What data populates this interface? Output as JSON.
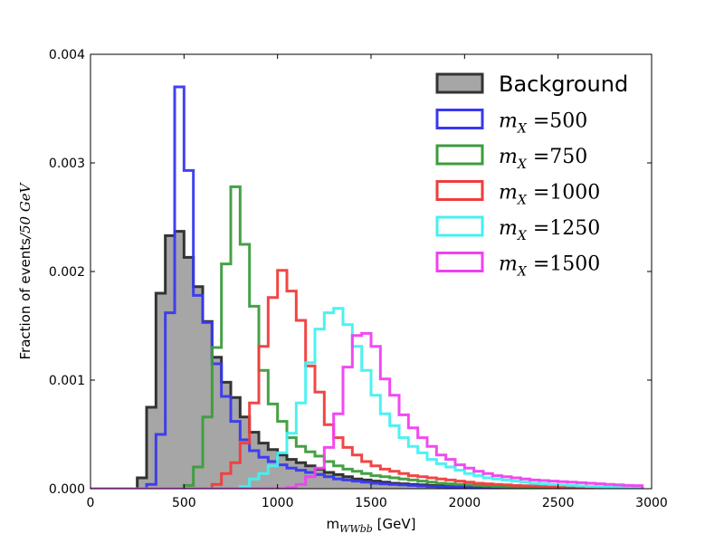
{
  "chart_data": {
    "type": "step-histogram",
    "title": "",
    "xlabel": {
      "main": "m",
      "sub": "WWbb",
      "unit": " [GeV]"
    },
    "ylabel": {
      "main": "Fraction of events",
      "suffix": "/50 GeV"
    },
    "xlim": [
      0,
      3000
    ],
    "ylim": [
      0,
      0.004
    ],
    "bin_width": 50,
    "bin_start": 0,
    "x_ticks": [
      0,
      500,
      1000,
      1500,
      2000,
      2500,
      3000
    ],
    "x_tick_labels": [
      "0",
      "500",
      "1000",
      "1500",
      "2000",
      "2500",
      "3000"
    ],
    "y_ticks": [
      0,
      0.001,
      0.002,
      0.003,
      0.004
    ],
    "y_tick_labels": [
      "0.000",
      "0.001",
      "0.002",
      "0.003",
      "0.004"
    ],
    "legend_position": "top-right",
    "series": [
      {
        "name": "Background",
        "label_kind": "text",
        "style": "filled",
        "color": "#333333",
        "fill": "#a6a6a6",
        "values": [
          0,
          0,
          0,
          0,
          0,
          0.0001,
          0.00075,
          0.0018,
          0.00233,
          0.00237,
          0.00213,
          0.00186,
          0.00154,
          0.00121,
          0.00098,
          0.00084,
          0.00066,
          0.00052,
          0.00042,
          0.00036,
          0.00031,
          0.00027,
          0.00024,
          0.00021,
          0.00018,
          0.00015,
          0.00013,
          0.00011,
          9e-05,
          8e-05,
          7e-05,
          6e-05,
          5e-05,
          4.5e-05,
          4e-05,
          3.5e-05,
          3e-05,
          2.5e-05,
          2e-05,
          1.8e-05,
          1.5e-05,
          1.3e-05,
          1.1e-05,
          1e-05,
          9e-06,
          8e-06,
          7e-06,
          6e-06,
          5e-06,
          5e-06,
          4e-06,
          4e-06,
          3e-06,
          3e-06,
          3e-06,
          2e-06,
          2e-06,
          2e-06,
          2e-06
        ]
      },
      {
        "name": "500",
        "label_kind": "math",
        "style": "step",
        "color": "#3838f0",
        "values": [
          0,
          0,
          0,
          0,
          0,
          0,
          4e-05,
          0.0005,
          0.00162,
          0.0037,
          0.00293,
          0.00178,
          0.00153,
          0.00115,
          0.00085,
          0.00062,
          0.00045,
          0.00035,
          0.00029,
          0.00025,
          0.00022,
          0.00019,
          0.00017,
          0.00015,
          0.00013,
          0.00011,
          9e-05,
          8e-05,
          7e-05,
          6e-05,
          5e-05,
          4.5e-05,
          4e-05,
          3.5e-05,
          3e-05,
          2.5e-05,
          2e-05,
          1.8e-05,
          1.5e-05,
          1.2e-05,
          1e-05,
          9e-06,
          8e-06,
          7e-06,
          6e-06,
          5e-06,
          4e-06,
          4e-06,
          3e-06,
          3e-06,
          3e-06,
          2e-06,
          2e-06,
          2e-06,
          2e-06,
          1e-06,
          1e-06,
          1e-06,
          1e-06
        ]
      },
      {
        "name": "750",
        "label_kind": "math",
        "style": "step",
        "color": "#3c9c3c",
        "values": [
          0,
          0,
          0,
          0,
          0,
          0,
          0,
          0,
          0,
          0,
          3e-05,
          0.0002,
          0.00066,
          0.0013,
          0.00207,
          0.00278,
          0.00225,
          0.00168,
          0.00109,
          0.00078,
          0.00062,
          0.00047,
          0.00039,
          0.00034,
          0.0003,
          0.00025,
          0.00021,
          0.00018,
          0.00016,
          0.00014,
          0.00012,
          0.00011,
          0.0001,
          9e-05,
          8e-05,
          7e-05,
          6e-05,
          5e-05,
          4.5e-05,
          4e-05,
          3.5e-05,
          3e-05,
          2.5e-05,
          2e-05,
          1.8e-05,
          1.5e-05,
          1.2e-05,
          1e-05,
          9e-06,
          8e-06,
          7e-06,
          6e-06,
          5e-06,
          4e-06,
          4e-06,
          3e-06,
          3e-06,
          2e-06,
          2e-06
        ]
      },
      {
        "name": "1000",
        "label_kind": "math",
        "style": "step",
        "color": "#f03c3c",
        "values": [
          0,
          0,
          0,
          0,
          0,
          0,
          0,
          0,
          0,
          0,
          0,
          0,
          0,
          4e-05,
          0.00014,
          0.00024,
          0.00042,
          0.00079,
          0.00131,
          0.00176,
          0.00201,
          0.00182,
          0.00155,
          0.00113,
          0.00089,
          0.00059,
          0.00047,
          0.00038,
          0.00031,
          0.00025,
          0.00021,
          0.00018,
          0.00016,
          0.00014,
          0.00012,
          0.00011,
          0.0001,
          9e-05,
          8e-05,
          7e-05,
          6e-05,
          5e-05,
          4.5e-05,
          4e-05,
          3.5e-05,
          3e-05,
          2.7e-05,
          2.4e-05,
          2e-05,
          1.8e-05,
          1.5e-05,
          1.3e-05,
          1.1e-05,
          1e-05,
          9e-06,
          8e-06,
          7e-06,
          6e-06,
          5e-06
        ]
      },
      {
        "name": "1250",
        "label_kind": "math",
        "style": "step",
        "color": "#44f0f0",
        "values": [
          0,
          0,
          0,
          0,
          0,
          0,
          0,
          0,
          0,
          0,
          0,
          0,
          0,
          0,
          0,
          0,
          2e-05,
          9e-05,
          0.00014,
          0.00021,
          0.00033,
          0.00051,
          0.00079,
          0.00116,
          0.00147,
          0.00162,
          0.00166,
          0.00151,
          0.00131,
          0.00109,
          0.00086,
          0.00069,
          0.00058,
          0.00047,
          0.00039,
          0.00033,
          0.00027,
          0.00023,
          0.0002,
          0.00017,
          0.00014,
          0.00012,
          0.0001,
          9e-05,
          8e-05,
          7e-05,
          6e-05,
          5e-05,
          4.5e-05,
          4e-05,
          3.5e-05,
          3e-05,
          2.5e-05,
          2e-05,
          1.8e-05,
          1.5e-05,
          1.3e-05,
          1.1e-05,
          1e-05
        ]
      },
      {
        "name": "1500",
        "label_kind": "math",
        "style": "step",
        "color": "#f040f0",
        "values": [
          0,
          0,
          0,
          0,
          0,
          0,
          0,
          0,
          0,
          0,
          0,
          0,
          0,
          0,
          0,
          0,
          0,
          0,
          0,
          0,
          0,
          1e-05,
          4e-05,
          0.00011,
          0.00019,
          0.00038,
          0.00069,
          0.00112,
          0.00141,
          0.00143,
          0.00131,
          0.00101,
          0.00086,
          0.00068,
          0.00056,
          0.00047,
          0.00039,
          0.00031,
          0.00027,
          0.00022,
          0.00019,
          0.00016,
          0.00014,
          0.00012,
          0.00011,
          0.0001,
          9e-05,
          8e-05,
          7.5e-05,
          7e-05,
          6.5e-05,
          6e-05,
          5.5e-05,
          5e-05,
          4.5e-05,
          4e-05,
          3.5e-05,
          3e-05,
          2.8e-05
        ]
      }
    ],
    "legend": {
      "math_var": "m",
      "math_sub": "X",
      "math_eq": " ="
    }
  },
  "colors": {
    "axes": "#000000",
    "background": "#ffffff"
  }
}
